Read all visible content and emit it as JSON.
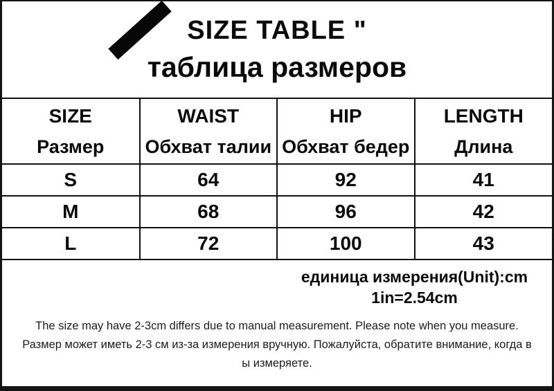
{
  "header": {
    "title": "SIZE TABLE \"",
    "subtitle": "таблица размеров",
    "brand_mark": "diagonal-black-stroke"
  },
  "size_table": {
    "columns": [
      {
        "en": "SIZE",
        "ru": "Размер"
      },
      {
        "en": "WAIST",
        "ru": "Обхват талии"
      },
      {
        "en": "HIP",
        "ru": "Обхват бедер"
      },
      {
        "en": "LENGTH",
        "ru": "Длина"
      }
    ],
    "rows": [
      {
        "size": "S",
        "waist": "64",
        "hip": "92",
        "length": "41"
      },
      {
        "size": "M",
        "waist": "68",
        "hip": "96",
        "length": "42"
      },
      {
        "size": "L",
        "waist": "72",
        "hip": "100",
        "length": "43"
      }
    ]
  },
  "unit_note": {
    "line1": "единица измерения(Unit):cm",
    "line2": "1in=2.54cm"
  },
  "footer": {
    "line1": "The size may have 2-3cm differs due to manual measurement. Please note when you measure.",
    "line2": "Размер может иметь 2-3 см из-за измерения вручную. Пожалуйста, обратите внимание, когда в",
    "line3": "ы измеряете."
  },
  "colors": {
    "frame": "#141414",
    "grid_line": "#101010",
    "text": "#0a0a0a",
    "background": "#ffffff"
  }
}
